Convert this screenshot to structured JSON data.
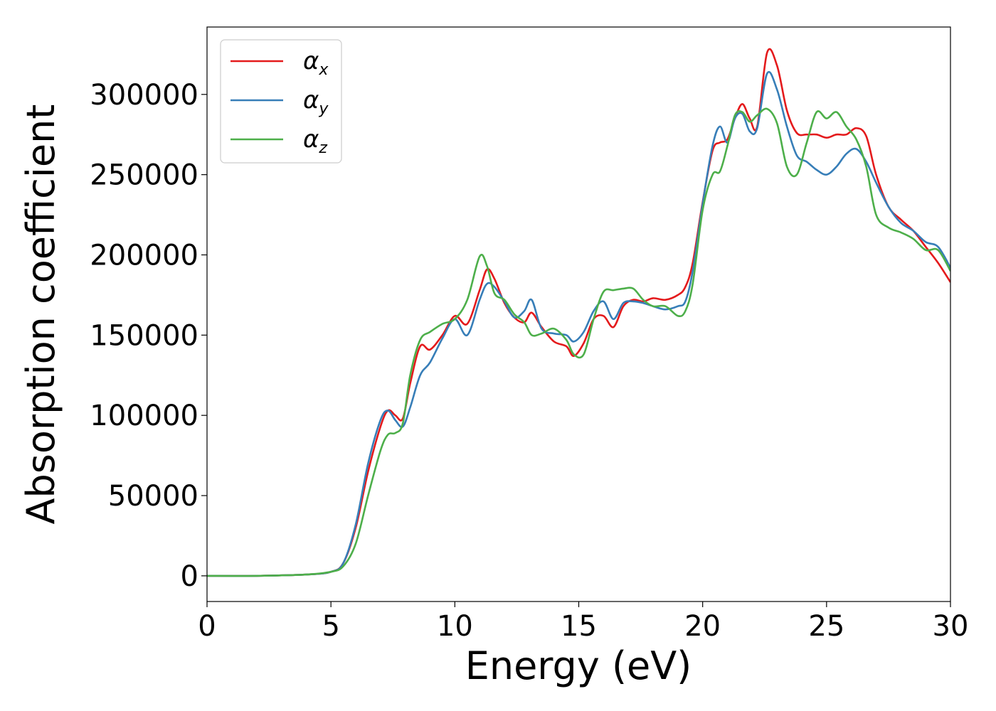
{
  "chart_data": {
    "type": "line",
    "title": "",
    "xlabel": "Energy (eV)",
    "ylabel": "Absorption coefficient",
    "xlim": [
      0,
      30
    ],
    "ylim": [
      -16000,
      342000
    ],
    "xticks": [
      0,
      5,
      10,
      15,
      20,
      25,
      30
    ],
    "yticks": [
      0,
      50000,
      100000,
      150000,
      200000,
      250000,
      300000
    ],
    "grid": false,
    "legend_position": "top-left",
    "series": [
      {
        "name": "α",
        "subscript": "x",
        "color": "#e41a1c",
        "x": [
          0,
          2,
          4,
          5,
          5.5,
          6,
          6.5,
          7,
          7.3,
          7.6,
          7.9,
          8.2,
          8.6,
          9.0,
          9.5,
          10,
          10.5,
          11,
          11.3,
          11.6,
          12,
          12.4,
          12.8,
          13.1,
          13.5,
          14,
          14.5,
          14.8,
          15.2,
          15.6,
          16,
          16.4,
          16.8,
          17.2,
          17.6,
          18,
          18.5,
          19,
          19.3,
          19.6,
          20,
          20.4,
          20.7,
          21.0,
          21.3,
          21.6,
          21.9,
          22.2,
          22.6,
          23.0,
          23.4,
          23.8,
          24.2,
          24.6,
          25,
          25.4,
          25.8,
          26.2,
          26.6,
          27,
          27.5,
          28,
          28.5,
          29,
          29.5,
          30
        ],
        "y": [
          0,
          0,
          800,
          2500,
          8000,
          30000,
          65000,
          93000,
          103000,
          100000,
          98000,
          120000,
          143000,
          141000,
          150000,
          162000,
          157000,
          178000,
          191000,
          185000,
          170000,
          161000,
          158000,
          164000,
          155000,
          146000,
          143000,
          137000,
          145000,
          160000,
          162000,
          155000,
          168000,
          172000,
          171000,
          173000,
          172000,
          175000,
          180000,
          195000,
          233000,
          265000,
          270000,
          272000,
          285000,
          294000,
          285000,
          280000,
          326000,
          318000,
          290000,
          276000,
          275000,
          275000,
          273000,
          275000,
          275000,
          279000,
          274000,
          250000,
          230000,
          222000,
          215000,
          205000,
          195000,
          183000
        ]
      },
      {
        "name": "α",
        "subscript": "y",
        "color": "#377eb8",
        "x": [
          0,
          2,
          4,
          5,
          5.5,
          6,
          6.5,
          7,
          7.3,
          7.6,
          7.9,
          8.2,
          8.6,
          9.0,
          9.5,
          10,
          10.5,
          11,
          11.3,
          11.6,
          12,
          12.4,
          12.8,
          13.1,
          13.5,
          14,
          14.5,
          14.8,
          15.2,
          15.6,
          16,
          16.4,
          16.8,
          17.2,
          17.6,
          18,
          18.5,
          19,
          19.3,
          19.6,
          20,
          20.4,
          20.7,
          21.0,
          21.3,
          21.6,
          21.9,
          22.2,
          22.6,
          23.0,
          23.4,
          23.8,
          24.2,
          24.6,
          25,
          25.4,
          25.8,
          26.2,
          26.6,
          27,
          27.5,
          28,
          28.5,
          29,
          29.5,
          30
        ],
        "y": [
          0,
          0,
          800,
          2500,
          8000,
          32000,
          70000,
          97000,
          103000,
          97000,
          93000,
          105000,
          125000,
          133000,
          148000,
          160000,
          150000,
          172000,
          182000,
          180000,
          171000,
          161000,
          165000,
          172000,
          154000,
          151000,
          150000,
          146000,
          152000,
          165000,
          171000,
          160000,
          170000,
          171000,
          170000,
          168000,
          166000,
          168000,
          171000,
          190000,
          232000,
          268000,
          280000,
          270000,
          285000,
          288000,
          277000,
          279000,
          313000,
          303000,
          280000,
          262000,
          258000,
          253000,
          250000,
          255000,
          263000,
          266000,
          258000,
          245000,
          230000,
          220000,
          215000,
          208000,
          205000,
          192000
        ]
      },
      {
        "name": "α",
        "subscript": "z",
        "color": "#4daf4a",
        "x": [
          0,
          2,
          4,
          5,
          5.5,
          6,
          6.5,
          7,
          7.3,
          7.6,
          7.9,
          8.2,
          8.6,
          9.0,
          9.5,
          10,
          10.5,
          11,
          11.3,
          11.6,
          12,
          12.4,
          12.8,
          13.1,
          13.5,
          14,
          14.5,
          14.8,
          15.2,
          15.6,
          16,
          16.4,
          16.8,
          17.2,
          17.6,
          18,
          18.5,
          19,
          19.3,
          19.6,
          20,
          20.4,
          20.7,
          21.0,
          21.3,
          21.6,
          21.9,
          22.2,
          22.6,
          23.0,
          23.4,
          23.8,
          24.2,
          24.6,
          25,
          25.4,
          25.8,
          26.2,
          26.6,
          27,
          27.5,
          28,
          28.5,
          29,
          29.5,
          30
        ],
        "y": [
          0,
          0,
          800,
          2500,
          6000,
          20000,
          50000,
          78000,
          88000,
          89000,
          95000,
          125000,
          147000,
          152000,
          157000,
          160000,
          172000,
          199000,
          193000,
          176000,
          172000,
          163000,
          158000,
          150000,
          151000,
          154000,
          147000,
          138000,
          138000,
          160000,
          177000,
          178000,
          179000,
          179000,
          172000,
          168000,
          168000,
          162000,
          165000,
          182000,
          228000,
          250000,
          252000,
          268000,
          287000,
          289000,
          283000,
          287000,
          291000,
          282000,
          255000,
          250000,
          270000,
          289000,
          285000,
          289000,
          280000,
          272000,
          255000,
          225000,
          217000,
          214000,
          210000,
          203000,
          203000,
          190000
        ]
      }
    ]
  }
}
